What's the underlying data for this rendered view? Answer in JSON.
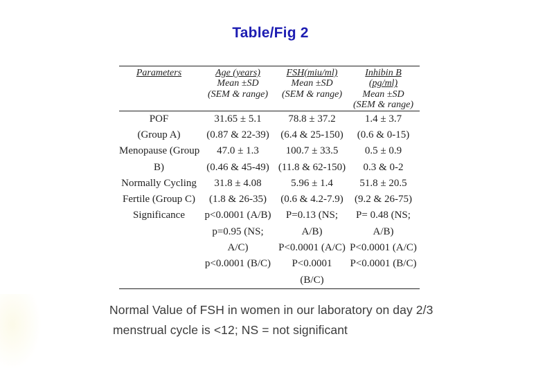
{
  "title": "Table/Fig 2",
  "colors": {
    "title_blue": "#1d1db2",
    "table_text": "#1f1f1f",
    "rule": "#222222",
    "footnote_text": "#3b3b3b"
  },
  "table": {
    "columns": [
      {
        "name": "parameters",
        "lines": [
          {
            "text": "Parameters",
            "u": true
          }
        ]
      },
      {
        "name": "age-years",
        "lines": [
          {
            "text": "Age (years)",
            "u": true
          },
          {
            "text": "Mean ±SD",
            "u": false
          },
          {
            "text": "(SEM & range)",
            "u": false
          }
        ]
      },
      {
        "name": "fsh-miu-ml",
        "lines": [
          {
            "text": "FSH(miu/ml)",
            "u": true
          },
          {
            "text": "Mean ±SD",
            "u": false
          },
          {
            "text": "(SEM & range)",
            "u": false
          }
        ]
      },
      {
        "name": "inhibin-b",
        "lines": [
          {
            "text": "Inhibin B",
            "u": true
          },
          {
            "text": "(pg/ml)",
            "u": true
          },
          {
            "text": "Mean ±SD",
            "u": false
          },
          {
            "text": "(SEM & range)",
            "u": false
          }
        ]
      }
    ],
    "rows": [
      [
        "POF",
        "31.65 ± 5.1",
        "78.8 ± 37.2",
        "1.4 ± 3.7"
      ],
      [
        "(Group A)",
        "(0.87 & 22-39)",
        "(6.4 & 25-150)",
        "(0.6 & 0-15)"
      ],
      [
        "Menopause (Group",
        "47.0 ± 1.3",
        "100.7 ± 33.5",
        "0.5 ± 0.9"
      ],
      [
        "B)",
        "(0.46 & 45-49)",
        "(11.8 & 62-150)",
        "0.3 & 0-2"
      ],
      [
        "Normally Cycling",
        "31.8 ± 4.08",
        "5.96 ± 1.4",
        "51.8 ± 20.5"
      ],
      [
        "Fertile (Group C)",
        "(1.8 & 26-35)",
        "(0.6 & 4.2-7.9)",
        "(9.2 & 26-75)"
      ],
      [
        "Significance",
        "p<0.0001 (A/B)",
        "P=0.13 (NS;",
        "P= 0.48 (NS;"
      ],
      [
        "",
        "p=0.95 (NS;",
        "A/B)",
        "A/B)"
      ],
      [
        "",
        "A/C)",
        "P<0.0001 (A/C)",
        "P<0.0001 (A/C)"
      ],
      [
        "",
        "p<0.0001 (B/C)",
        "P<0.0001",
        "P<0.0001 (B/C)"
      ],
      [
        "",
        "",
        "(B/C)",
        ""
      ]
    ]
  },
  "footnote": {
    "line1": "Normal Value of FSH in women in our laboratory on day 2/3",
    "line2": "menstrual cycle is <12; NS = not  significant"
  }
}
